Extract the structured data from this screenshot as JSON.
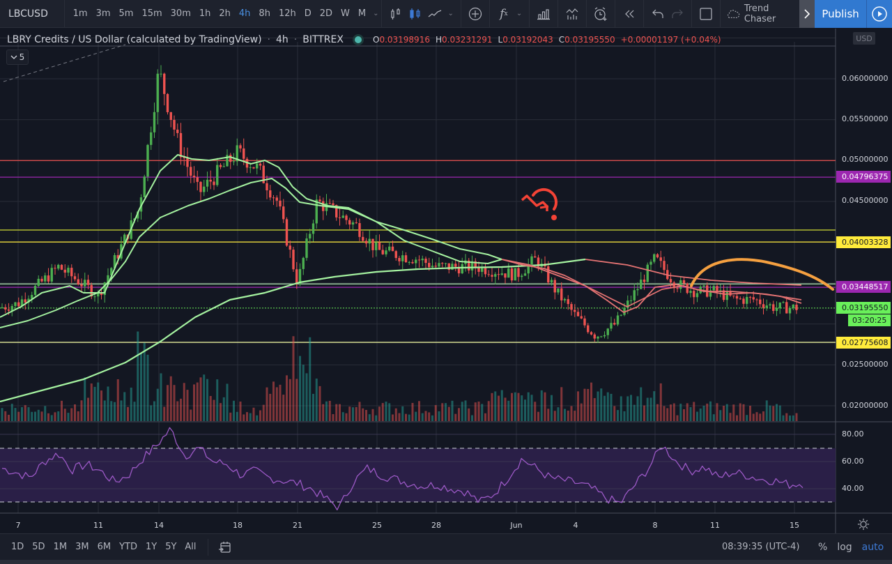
{
  "toolbar": {
    "symbol": "LBCUSD",
    "intervals": [
      "1m",
      "3m",
      "5m",
      "15m",
      "30m",
      "1h",
      "2h",
      "4h",
      "8h",
      "12h",
      "D",
      "2D",
      "W",
      "M"
    ],
    "active_interval": "4h",
    "icons": [
      "bar-chart-icon",
      "candles-icon",
      "line-chart-icon",
      "add-compare-icon",
      "indicators-icon",
      "financials-icon",
      "templates-icon",
      "alert-icon",
      "replay-icon",
      "undo-icon",
      "redo-icon",
      "fullscreen-icon"
    ],
    "layout_name": "Trend Chaser",
    "publish_label": "Publish"
  },
  "legend": {
    "title": "LBRY Credits / US Dollar (calculated by TradingView)",
    "interval": "4h",
    "exchange": "BITTREX",
    "open_key": "O",
    "open": "0.03198916",
    "high_key": "H",
    "high": "0.03231291",
    "low_key": "L",
    "low": "0.03192043",
    "close_key": "C",
    "close": "0.03195550",
    "change": "+0.00001197 (+0.04%)",
    "indicators_collapsed_count": "5"
  },
  "price_axis": {
    "currency": "USD",
    "labels": [
      {
        "text": "0.06000000",
        "y": 113
      },
      {
        "text": "0.05500000",
        "y": 171
      },
      {
        "text": "0.05000000",
        "y": 229
      },
      {
        "text": "0.04500000",
        "y": 288
      },
      {
        "text": "0.02500000",
        "y": 523
      },
      {
        "text": "0.02000000",
        "y": 582
      }
    ],
    "tags": [
      {
        "text": "0.04796375",
        "y": 253,
        "bg": "#9c27b0",
        "fg": "#ffffff"
      },
      {
        "text": "0.04003328",
        "y": 347,
        "bg": "#ffeb3b",
        "fg": "#131722"
      },
      {
        "text": "0.03448517",
        "y": 411,
        "bg": "#9c27b0",
        "fg": "#ffffff"
      },
      {
        "text": "0.03195550",
        "y": 441,
        "bg": "#69f05a",
        "fg": "#131722"
      },
      {
        "text": "03:20:25",
        "y": 459,
        "bg": "#69f05a",
        "fg": "#131722"
      },
      {
        "text": "0.02775608",
        "y": 491,
        "bg": "#ffeb3b",
        "fg": "#131722"
      }
    ]
  },
  "rsi_axis": {
    "labels": [
      {
        "text": "80.00",
        "y": 623
      },
      {
        "text": "60.00",
        "y": 662
      },
      {
        "text": "40.00",
        "y": 701
      }
    ]
  },
  "time_axis": {
    "labels": [
      {
        "text": "7",
        "x": 26
      },
      {
        "text": "11",
        "x": 141
      },
      {
        "text": "14",
        "x": 228
      },
      {
        "text": "18",
        "x": 341
      },
      {
        "text": "21",
        "x": 427
      },
      {
        "text": "25",
        "x": 541
      },
      {
        "text": "28",
        "x": 626
      },
      {
        "text": "Jun",
        "x": 741
      },
      {
        "text": "4",
        "x": 826
      },
      {
        "text": "8",
        "x": 940
      },
      {
        "text": "11",
        "x": 1026
      },
      {
        "text": "15",
        "x": 1140
      }
    ]
  },
  "bottombar": {
    "ranges": [
      "1D",
      "5D",
      "1M",
      "3M",
      "6M",
      "YTD",
      "1Y",
      "5Y",
      "All"
    ],
    "clock": "08:39:35 (UTC-4)",
    "percent_label": "%",
    "log_label": "log",
    "auto_label": "auto"
  },
  "colors": {
    "background": "#131722",
    "up": "#4caf50",
    "down": "#ef5350",
    "ma_green": "#a5f2a0",
    "ma_pink": "#e57373",
    "rsi": "#9c59c6",
    "rsi_band": "#2a1f47",
    "orange_arc": "#f5a040",
    "accent_blue": "#3179d0"
  },
  "chart_data": {
    "type": "candlestick",
    "title": "LBRY Credits / US Dollar (calculated by TradingView) · 4h · BITTREX",
    "xlabel": "",
    "ylabel": "USD",
    "x_ticks": [
      "7",
      "11",
      "14",
      "18",
      "21",
      "25",
      "28",
      "Jun",
      "4",
      "8",
      "11",
      "15"
    ],
    "ylim": [
      0.019,
      0.065
    ],
    "y_ticks": [
      0.02,
      0.025,
      0.045,
      0.05,
      0.055,
      0.06
    ],
    "last": {
      "open": 0.03198916,
      "high": 0.03231291,
      "low": 0.03192043,
      "close": 0.0319555,
      "change": 1.197e-05,
      "change_pct": 0.04
    },
    "horizontal_levels": [
      {
        "price": 0.05,
        "color": "#ef5350"
      },
      {
        "price": 0.04796375,
        "color": "#9c27b0"
      },
      {
        "price": 0.0415,
        "color": "#c0ca33"
      },
      {
        "price": 0.04003328,
        "color": "#ffeb3b"
      },
      {
        "price": 0.0349,
        "color": "#a5d6a7"
      },
      {
        "price": 0.03448517,
        "color": "#9c27b0"
      },
      {
        "price": 0.0319555,
        "color": "#69f05a",
        "style": "dotted"
      },
      {
        "price": 0.02775608,
        "color": "#e6ee9c"
      }
    ],
    "close_series_approx": {
      "dates": [
        "7",
        "9",
        "11",
        "13",
        "14",
        "15",
        "16",
        "18",
        "19",
        "20",
        "21",
        "22",
        "24",
        "25",
        "27",
        "28",
        "30",
        "Jun",
        "2",
        "3",
        "4",
        "5",
        "6",
        "7",
        "8",
        "9",
        "10",
        "11",
        "12",
        "13",
        "14",
        "15"
      ],
      "values": [
        0.0325,
        0.037,
        0.0335,
        0.044,
        0.061,
        0.052,
        0.046,
        0.051,
        0.049,
        0.045,
        0.035,
        0.045,
        0.042,
        0.039,
        0.038,
        0.037,
        0.037,
        0.036,
        0.038,
        0.034,
        0.031,
        0.0285,
        0.03,
        0.034,
        0.038,
        0.035,
        0.034,
        0.034,
        0.033,
        0.033,
        0.032,
        0.032
      ]
    },
    "series": [
      {
        "name": "MA fast (green/pink)",
        "values_approx": [
          0.0318,
          0.0335,
          0.034,
          0.042,
          0.048,
          0.05,
          0.0495,
          0.05,
          0.048,
          0.046,
          0.044,
          0.042,
          0.04,
          0.038,
          0.037,
          0.037,
          0.035,
          0.0325,
          0.031,
          0.034,
          0.034,
          0.033,
          0.033,
          0.0328
        ]
      },
      {
        "name": "MA mid",
        "values_approx": [
          0.0305,
          0.032,
          0.035,
          0.046,
          0.048,
          0.048,
          0.046,
          0.0445,
          0.042,
          0.04,
          0.038,
          0.038,
          0.0365,
          0.036,
          0.035,
          0.0345,
          0.034,
          0.034
        ]
      },
      {
        "name": "MA slow",
        "values_approx": [
          0.0205,
          0.023,
          0.027,
          0.031,
          0.0345,
          0.0365,
          0.037,
          0.0373,
          0.037,
          0.036,
          0.0355,
          0.035,
          0.0348
        ]
      }
    ],
    "rsi": {
      "ylim": [
        20,
        90
      ],
      "overbought": 70,
      "oversold": 30,
      "values_approx": [
        55,
        52,
        48,
        60,
        66,
        54,
        58,
        53,
        45,
        50,
        62,
        72,
        84,
        64,
        70,
        60,
        58,
        50,
        53,
        48,
        46,
        44,
        40,
        33,
        26,
        45,
        55,
        50,
        47,
        44,
        42,
        43,
        40,
        38,
        30,
        36,
        48,
        62,
        55,
        48,
        46,
        44,
        40,
        33,
        29,
        42,
        55,
        72,
        60,
        53,
        56,
        48,
        52,
        50,
        47,
        46,
        43,
        44
      ]
    },
    "volume": {
      "bars": "teal (up) / red (down)",
      "peak_near": [
        "14",
        "21"
      ]
    },
    "annotations": [
      "orange arc drawing over Jun 10-16",
      "red custom icon near May 31 at ~0.046",
      "grey dashed trendline top-left"
    ]
  }
}
